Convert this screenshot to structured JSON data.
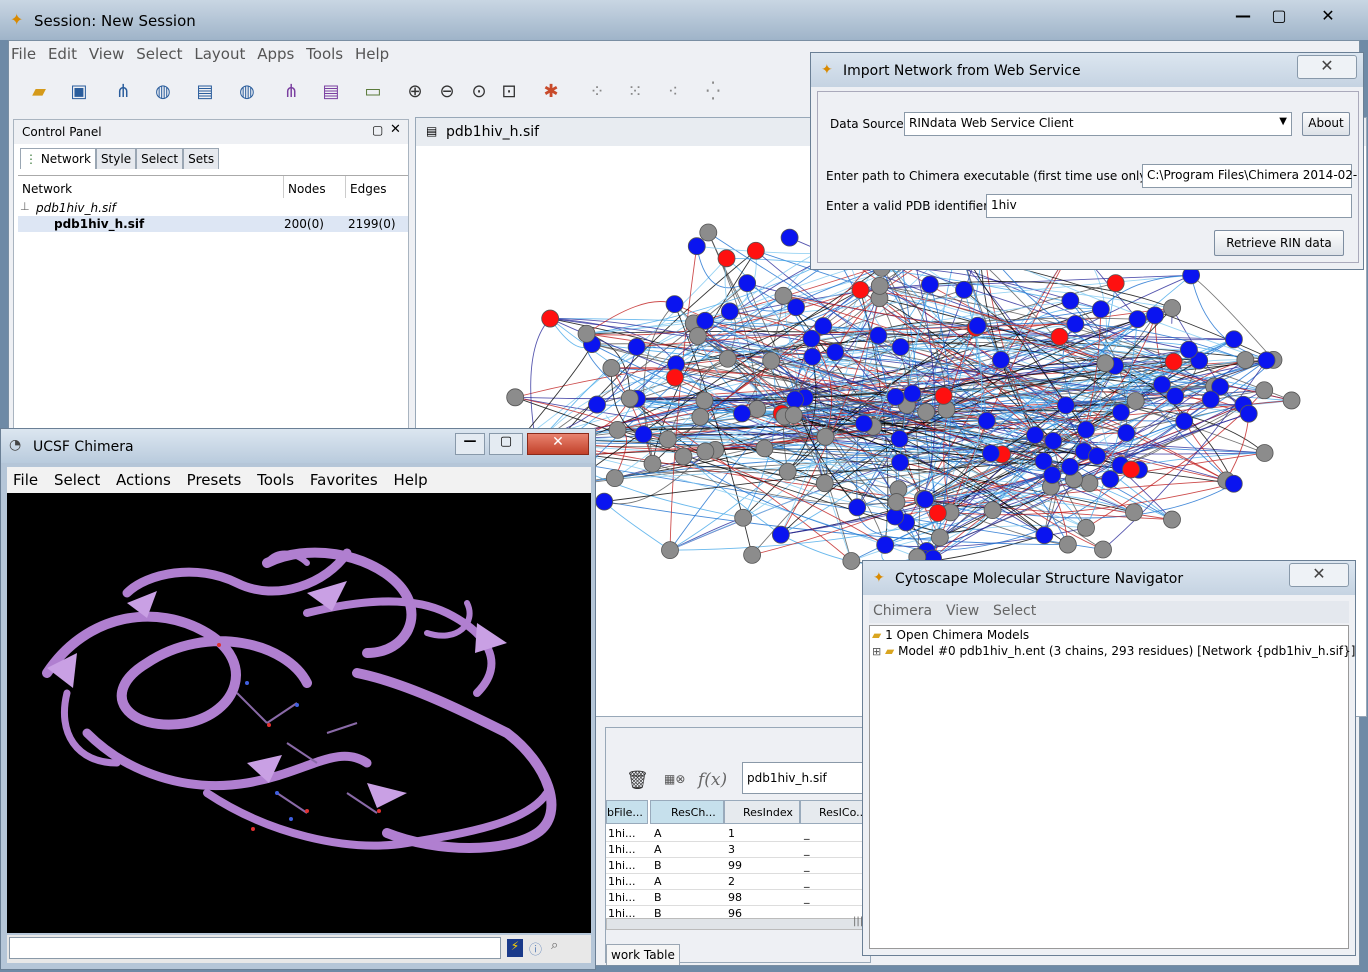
{
  "main_window": {
    "title": "Session: New Session",
    "menu": [
      "File",
      "Edit",
      "View",
      "Select",
      "Layout",
      "Apps",
      "Tools",
      "Help"
    ]
  },
  "control_panel": {
    "title": "Control Panel",
    "tabs": [
      "Network",
      "Style",
      "Select",
      "Sets"
    ],
    "columns": [
      "Network",
      "Nodes",
      "Edges"
    ],
    "rows": [
      {
        "name": "pdb1hiv_h.sif",
        "nodes": "",
        "edges": ""
      },
      {
        "name": "pdb1hiv_h.sif",
        "nodes": "200(0)",
        "edges": "2199(0)"
      }
    ]
  },
  "network_view": {
    "title": "pdb1hiv_h.sif"
  },
  "import_dialog": {
    "title": "Import Network from Web Service",
    "data_source_label": "Data Source",
    "data_source_value": "RINdata Web Service Client",
    "about_label": "About",
    "path_label": "Enter path to Chimera executable (first time use only)",
    "path_value": "C:\\Program Files\\Chimera 2014-02-",
    "pdb_label": "Enter a valid PDB identifier",
    "pdb_value": "1hiv",
    "retrieve_label": "Retrieve RIN data"
  },
  "chimera": {
    "title": "UCSF Chimera",
    "menu": [
      "File",
      "Select",
      "Actions",
      "Presets",
      "Tools",
      "Favorites",
      "Help"
    ]
  },
  "table_panel": {
    "network_field": "pdb1hiv_h.sif",
    "fx_label": "f(x)",
    "columns": [
      "bFile...",
      "ResCh...",
      "ResIndex",
      "ResICo..."
    ],
    "rows": [
      [
        "1hi...",
        "A",
        "1",
        "_"
      ],
      [
        "1hi...",
        "A",
        "3",
        "_"
      ],
      [
        "1hi...",
        "B",
        "99",
        "_"
      ],
      [
        "1hi...",
        "A",
        "2",
        "_"
      ],
      [
        "1hi...",
        "B",
        "98",
        "_"
      ],
      [
        "1hi...",
        "B",
        "96",
        "_"
      ]
    ],
    "tab_label": "work Table"
  },
  "navigator": {
    "title": "Cytoscape Molecular Structure Navigator",
    "menu": [
      "Chimera",
      "View",
      "Select"
    ],
    "tree_root": "1 Open Chimera Models",
    "tree_child": "Model #0 pdb1hiv_h.ent (3 chains, 293 residues) [Network {pdb1hiv_h.sif}]"
  }
}
